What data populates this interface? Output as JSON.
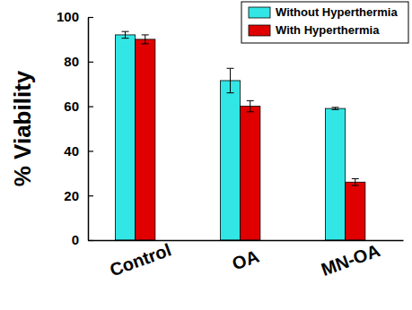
{
  "chart_data": {
    "type": "bar",
    "categories": [
      "Control",
      "OA",
      "MN-OA"
    ],
    "y_label": "% Viability",
    "series": [
      {
        "name": "Without Hyperthermia",
        "color": "#33e6e6",
        "values": [
          92,
          71.5,
          59
        ],
        "errors": [
          1.5,
          5.5,
          0.5
        ]
      },
      {
        "name": "With Hyperthermia",
        "color": "#e00000",
        "values": [
          90,
          60,
          26
        ],
        "errors": [
          2,
          2.5,
          1.5
        ]
      }
    ],
    "ylim": [
      0,
      100
    ],
    "yticks": [
      0,
      20,
      40,
      60,
      80,
      100
    ],
    "legend": "upper right"
  }
}
